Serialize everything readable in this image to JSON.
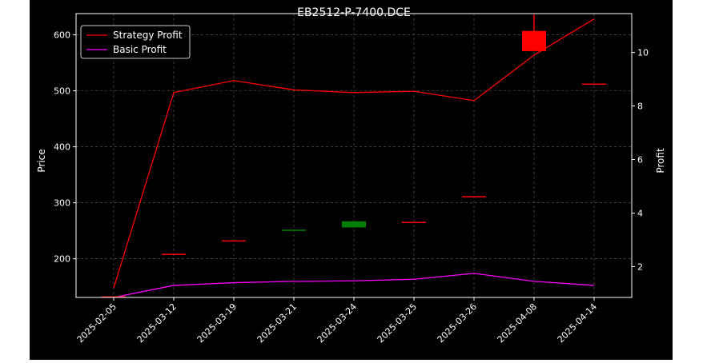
{
  "chart_data": {
    "type": "candlestick+line",
    "title": "EB2512-P-7400.DCE",
    "ylabel_left": "Price",
    "ylabel_right": "Profit",
    "categories": [
      "2025-02-05",
      "2025-03-12",
      "2025-03-19",
      "2025-03-21",
      "2025-03-24",
      "2025-03-25",
      "2025-03-26",
      "2025-04-08",
      "2025-04-14"
    ],
    "y_left_ticks": [
      200,
      300,
      400,
      500,
      600
    ],
    "y_left_range": [
      131,
      638
    ],
    "y_right_ticks": [
      2,
      4,
      6,
      8,
      10
    ],
    "y_right_range": [
      0.85,
      11.45
    ],
    "grid": true,
    "legend_position": "top-left",
    "candles": [
      {
        "date": "2025-02-05",
        "open": 133,
        "close": 133,
        "high": 133,
        "low": 133
      },
      {
        "date": "2025-03-12",
        "open": 209,
        "close": 209,
        "high": 209,
        "low": 209
      },
      {
        "date": "2025-03-19",
        "open": 233,
        "close": 233,
        "high": 233,
        "low": 233
      },
      {
        "date": "2025-03-21",
        "open": 251,
        "close": 252,
        "high": 252,
        "low": 251
      },
      {
        "date": "2025-03-24",
        "open": 256,
        "close": 267,
        "high": 267,
        "low": 256
      },
      {
        "date": "2025-03-25",
        "open": 266,
        "close": 266,
        "high": 266,
        "low": 266
      },
      {
        "date": "2025-03-26",
        "open": 312,
        "close": 312,
        "high": 312,
        "low": 312
      },
      {
        "date": "2025-04-08",
        "open": 607,
        "close": 571,
        "high": 636,
        "low": 571
      },
      {
        "date": "2025-04-14",
        "open": 513,
        "close": 513,
        "high": 513,
        "low": 513
      }
    ],
    "series": [
      {
        "name": "Strategy Profit",
        "axis": "right",
        "color": "#ff0000",
        "values": [
          1.2,
          8.5,
          8.95,
          8.6,
          8.5,
          8.55,
          8.2,
          9.9,
          11.25
        ]
      },
      {
        "name": "Basic Profit",
        "axis": "right",
        "color": "#ff00ff",
        "values": [
          0.85,
          1.3,
          1.4,
          1.45,
          1.47,
          1.53,
          1.75,
          1.45,
          1.3
        ]
      }
    ],
    "colors": {
      "background": "#000000",
      "up": "#008000",
      "down": "#ff0000",
      "grid": "#808080",
      "axis": "#ffffff"
    }
  }
}
